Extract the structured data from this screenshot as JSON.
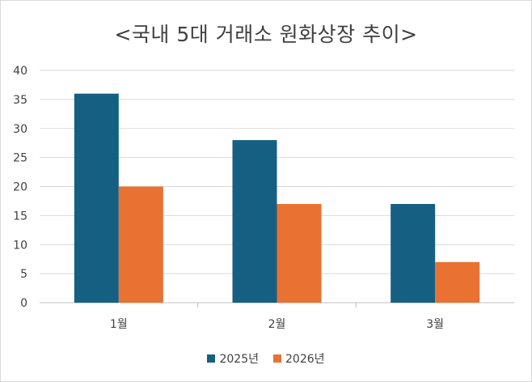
{
  "chart_data": {
    "type": "bar",
    "title": "<국내 5대 거래소 원화상장 추이>",
    "categories": [
      "1월",
      "2월",
      "3월"
    ],
    "series": [
      {
        "name": "2025년",
        "values": [
          36,
          28,
          17
        ],
        "color": "#156082"
      },
      {
        "name": "2026년",
        "values": [
          20,
          17,
          7
        ],
        "color": "#E97132"
      }
    ],
    "ylim": [
      0,
      40
    ],
    "yticks": [
      "0",
      "5",
      "10",
      "15",
      "20",
      "25",
      "30",
      "35",
      "40"
    ],
    "grid": true,
    "legend_position": "bottom"
  }
}
